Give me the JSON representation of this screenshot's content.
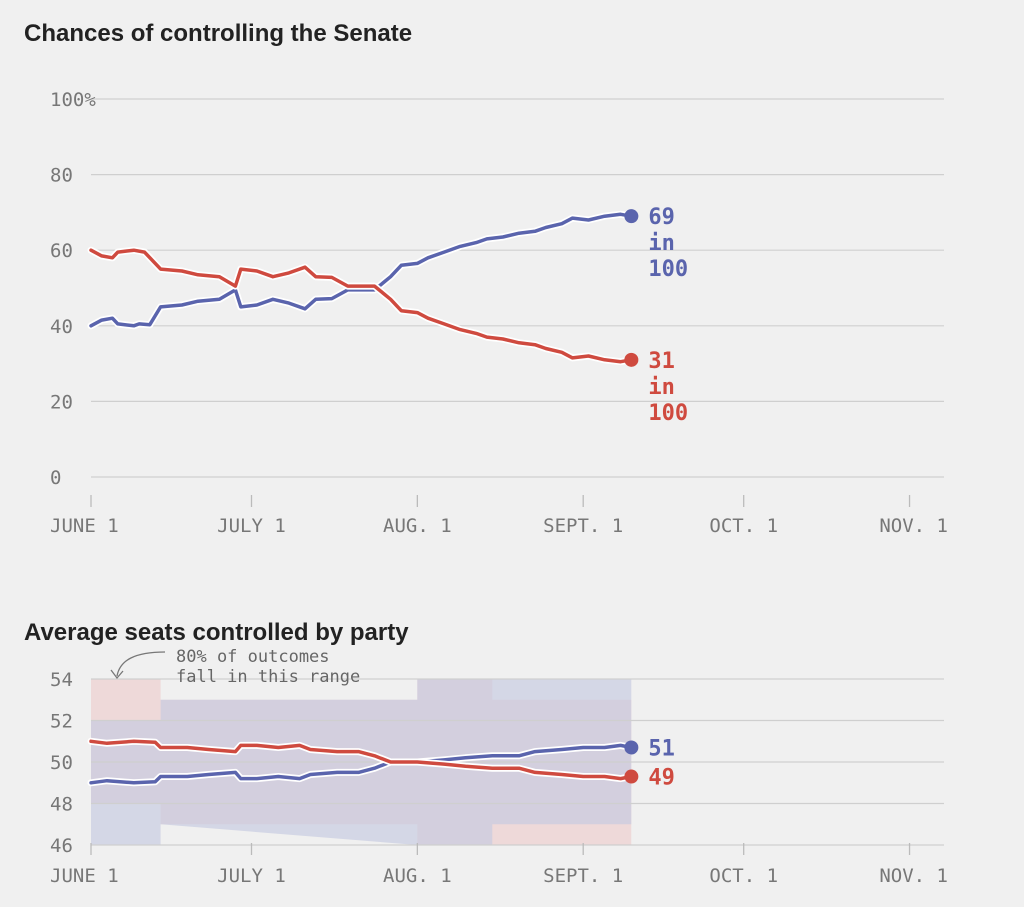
{
  "colors": {
    "dem": "#5a64ad",
    "rep": "#cf4a3f",
    "dem_band": "#c5c9e0",
    "rep_band": "#edcdcc"
  },
  "chart_data": [
    {
      "type": "line",
      "title": "Chances of controlling the Senate",
      "yticks": [
        {
          "value": 100,
          "label": "100%"
        },
        {
          "value": 80,
          "label": "80"
        },
        {
          "value": 60,
          "label": "60"
        },
        {
          "value": 40,
          "label": "40"
        },
        {
          "value": 20,
          "label": "20"
        },
        {
          "value": 0,
          "label": "0"
        }
      ],
      "xticks": [
        {
          "day": 0,
          "label": "JUNE 1"
        },
        {
          "day": 30,
          "label": "JULY 1"
        },
        {
          "day": 61,
          "label": "AUG. 1"
        },
        {
          "day": 92,
          "label": "SEPT. 1"
        },
        {
          "day": 122,
          "label": "OCT. 1"
        },
        {
          "day": 153,
          "label": "NOV. 1"
        }
      ],
      "ylim": [
        0,
        100
      ],
      "series": [
        {
          "key": "dem",
          "points": [
            [
              0,
              40
            ],
            [
              2,
              41.5
            ],
            [
              4,
              42
            ],
            [
              5,
              40.5
            ],
            [
              8,
              40
            ],
            [
              9,
              40.5
            ],
            [
              11,
              40.3
            ],
            [
              13,
              45
            ],
            [
              17,
              45.5
            ],
            [
              20,
              46.5
            ],
            [
              24,
              47
            ],
            [
              27,
              49.5
            ],
            [
              28,
              45
            ],
            [
              31,
              45.5
            ],
            [
              34,
              47
            ],
            [
              37,
              46
            ],
            [
              40,
              44.5
            ],
            [
              42,
              47
            ],
            [
              45,
              47.2
            ],
            [
              48,
              49.5
            ],
            [
              53,
              49.5
            ],
            [
              56,
              53
            ],
            [
              58,
              56
            ],
            [
              61,
              56.5
            ],
            [
              63,
              58
            ],
            [
              66,
              59.5
            ],
            [
              69,
              61
            ],
            [
              72,
              62
            ],
            [
              74,
              63
            ],
            [
              77,
              63.5
            ],
            [
              80,
              64.5
            ],
            [
              83,
              65
            ],
            [
              85,
              66
            ],
            [
              88,
              67
            ],
            [
              90,
              68.5
            ],
            [
              93,
              68
            ],
            [
              96,
              69
            ],
            [
              99,
              69.5
            ],
            [
              101,
              69
            ]
          ],
          "end_label": [
            "69",
            "in",
            "100"
          ]
        },
        {
          "key": "rep",
          "points": [
            [
              0,
              60
            ],
            [
              2,
              58.5
            ],
            [
              4,
              58
            ],
            [
              5,
              59.5
            ],
            [
              8,
              60
            ],
            [
              10,
              59.5
            ],
            [
              13,
              55
            ],
            [
              17,
              54.5
            ],
            [
              20,
              53.5
            ],
            [
              24,
              53
            ],
            [
              27,
              50.5
            ],
            [
              28,
              55
            ],
            [
              31,
              54.5
            ],
            [
              34,
              53
            ],
            [
              37,
              54
            ],
            [
              40,
              55.5
            ],
            [
              42,
              53
            ],
            [
              45,
              52.8
            ],
            [
              48,
              50.5
            ],
            [
              53,
              50.5
            ],
            [
              56,
              47
            ],
            [
              58,
              44
            ],
            [
              61,
              43.5
            ],
            [
              63,
              42
            ],
            [
              66,
              40.5
            ],
            [
              69,
              39
            ],
            [
              72,
              38
            ],
            [
              74,
              37
            ],
            [
              77,
              36.5
            ],
            [
              80,
              35.5
            ],
            [
              83,
              35
            ],
            [
              85,
              34
            ],
            [
              88,
              33
            ],
            [
              90,
              31.5
            ],
            [
              93,
              32
            ],
            [
              96,
              31
            ],
            [
              99,
              30.5
            ],
            [
              101,
              31
            ]
          ],
          "end_label": [
            "31",
            "in",
            "100"
          ]
        }
      ]
    },
    {
      "type": "area",
      "title": "Average seats controlled by party",
      "yticks": [
        {
          "value": 54,
          "label": "54"
        },
        {
          "value": 52,
          "label": "52"
        },
        {
          "value": 50,
          "label": "50"
        },
        {
          "value": 48,
          "label": "48"
        },
        {
          "value": 46,
          "label": "46"
        }
      ],
      "xticks": [
        {
          "day": 0,
          "label": "JUNE 1"
        },
        {
          "day": 30,
          "label": "JULY 1"
        },
        {
          "day": 61,
          "label": "AUG. 1"
        },
        {
          "day": 92,
          "label": "SEPT. 1"
        },
        {
          "day": 122,
          "label": "OCT. 1"
        },
        {
          "day": 153,
          "label": "NOV. 1"
        }
      ],
      "ylim": [
        46,
        54
      ],
      "annotation": [
        "80% of outcomes",
        "fall in this range"
      ],
      "bands": [
        {
          "key": "rep",
          "points": [
            [
              0,
              54,
              48
            ],
            [
              13,
              54,
              48
            ],
            [
              13,
              53,
              47
            ],
            [
              61,
              53,
              47
            ],
            [
              61,
              54,
              46
            ],
            [
              75,
              54,
              46
            ],
            [
              75,
              53,
              46
            ],
            [
              101,
              53,
              46
            ]
          ]
        },
        {
          "key": "dem",
          "points": [
            [
              0,
              52,
              46
            ],
            [
              13,
              52,
              46
            ],
            [
              13,
              53,
              47
            ],
            [
              61,
              53,
              46
            ],
            [
              61,
              54,
              46
            ],
            [
              75,
              54,
              46
            ],
            [
              75,
              54,
              47
            ],
            [
              101,
              54,
              47
            ]
          ]
        }
      ],
      "series": [
        {
          "key": "dem",
          "points": [
            [
              0,
              49
            ],
            [
              3,
              49.1
            ],
            [
              8,
              49
            ],
            [
              12,
              49.05
            ],
            [
              13,
              49.3
            ],
            [
              18,
              49.3
            ],
            [
              22,
              49.4
            ],
            [
              27,
              49.5
            ],
            [
              28,
              49.2
            ],
            [
              31,
              49.2
            ],
            [
              35,
              49.3
            ],
            [
              39,
              49.2
            ],
            [
              41,
              49.4
            ],
            [
              46,
              49.5
            ],
            [
              50,
              49.5
            ],
            [
              53,
              49.7
            ],
            [
              56,
              50
            ],
            [
              61,
              50
            ],
            [
              66,
              50.1
            ],
            [
              70,
              50.2
            ],
            [
              75,
              50.3
            ],
            [
              80,
              50.3
            ],
            [
              83,
              50.5
            ],
            [
              88,
              50.6
            ],
            [
              92,
              50.7
            ],
            [
              96,
              50.7
            ],
            [
              99,
              50.8
            ],
            [
              101,
              50.7
            ]
          ],
          "end_label": [
            "51"
          ]
        },
        {
          "key": "rep",
          "points": [
            [
              0,
              51
            ],
            [
              3,
              50.9
            ],
            [
              8,
              51
            ],
            [
              12,
              50.95
            ],
            [
              13,
              50.7
            ],
            [
              18,
              50.7
            ],
            [
              22,
              50.6
            ],
            [
              27,
              50.5
            ],
            [
              28,
              50.8
            ],
            [
              31,
              50.8
            ],
            [
              35,
              50.7
            ],
            [
              39,
              50.8
            ],
            [
              41,
              50.6
            ],
            [
              46,
              50.5
            ],
            [
              50,
              50.5
            ],
            [
              53,
              50.3
            ],
            [
              56,
              50
            ],
            [
              61,
              50
            ],
            [
              66,
              49.9
            ],
            [
              70,
              49.8
            ],
            [
              75,
              49.7
            ],
            [
              80,
              49.7
            ],
            [
              83,
              49.5
            ],
            [
              88,
              49.4
            ],
            [
              92,
              49.3
            ],
            [
              96,
              49.3
            ],
            [
              99,
              49.2
            ],
            [
              101,
              49.3
            ]
          ],
          "end_label": [
            "49"
          ]
        }
      ]
    }
  ]
}
